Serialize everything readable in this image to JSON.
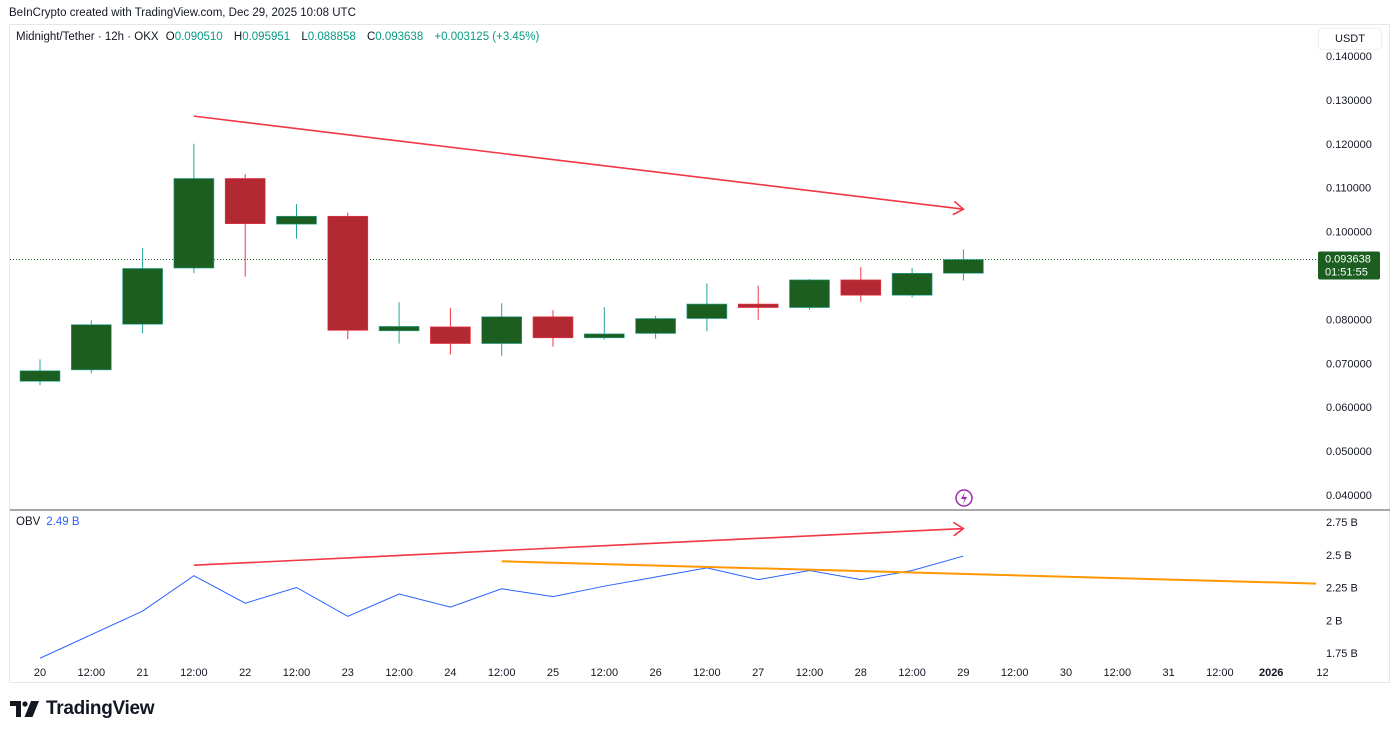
{
  "header": {
    "credit": "BeInCrypto created with TradingView.com, Dec 29, 2025 10:08 UTC",
    "symbol": "Midnight/Tether · 12h · OKX",
    "o_label": "O",
    "o_value": "0.090510",
    "h_label": "H",
    "h_value": "0.095951",
    "l_label": "L",
    "l_value": "0.088858",
    "c_label": "C",
    "c_value": "0.093638",
    "change": "+0.003125 (+3.45%)"
  },
  "price_axis": {
    "unit": "USDT",
    "last_price": "0.093638",
    "countdown": "01:51:55"
  },
  "obv_legend": {
    "label": "OBV",
    "value": "2.49 B"
  },
  "footer": {
    "logo_text": "TradingView"
  },
  "colors": {
    "up": "#1b5e20",
    "up_wick": "#26a69a",
    "down": "#b22833",
    "down_wick": "#f23645",
    "obv": "#2962ff",
    "trend_red": "#f23645",
    "trend_orange": "#ff9800",
    "event": "#9c27b0"
  },
  "chart_data": [
    {
      "type": "candlestick",
      "title": "Midnight/Tether · 12h · OKX",
      "ylabel": "USDT",
      "ylim": [
        0.04,
        0.14
      ],
      "yticks": [
        "0.140000",
        "0.130000",
        "0.120000",
        "0.110000",
        "0.100000",
        "0.080000",
        "0.070000",
        "0.060000",
        "0.050000",
        "0.040000"
      ],
      "x_tick_labels": [
        "20",
        "12:00",
        "21",
        "12:00",
        "22",
        "12:00",
        "23",
        "12:00",
        "24",
        "12:00",
        "25",
        "12:00",
        "26",
        "12:00",
        "27",
        "12:00",
        "28",
        "12:00",
        "29",
        "12:00",
        "30",
        "12:00",
        "31",
        "12:00",
        "2026",
        "12"
      ],
      "candles": [
        {
          "t": "Dec 20 00:00",
          "o": 0.0659,
          "h": 0.0709,
          "l": 0.065,
          "c": 0.0683
        },
        {
          "t": "Dec 20 12:00",
          "o": 0.0685,
          "h": 0.0798,
          "l": 0.0677,
          "c": 0.0788
        },
        {
          "t": "Dec 21 00:00",
          "o": 0.0789,
          "h": 0.0963,
          "l": 0.0768,
          "c": 0.0916
        },
        {
          "t": "Dec 21 12:00",
          "o": 0.0917,
          "h": 0.12,
          "l": 0.0905,
          "c": 0.1121
        },
        {
          "t": "Dec 22 00:00",
          "o": 0.1121,
          "h": 0.1131,
          "l": 0.0897,
          "c": 0.1018
        },
        {
          "t": "Dec 22 12:00",
          "o": 0.1017,
          "h": 0.1063,
          "l": 0.0984,
          "c": 0.1035
        },
        {
          "t": "Dec 23 00:00",
          "o": 0.1035,
          "h": 0.1043,
          "l": 0.0755,
          "c": 0.0775
        },
        {
          "t": "Dec 23 12:00",
          "o": 0.0774,
          "h": 0.0839,
          "l": 0.0745,
          "c": 0.0784
        },
        {
          "t": "Dec 24 00:00",
          "o": 0.0783,
          "h": 0.0826,
          "l": 0.072,
          "c": 0.0745
        },
        {
          "t": "Dec 24 12:00",
          "o": 0.0745,
          "h": 0.0837,
          "l": 0.0717,
          "c": 0.0806
        },
        {
          "t": "Dec 25 00:00",
          "o": 0.0806,
          "h": 0.0821,
          "l": 0.0738,
          "c": 0.0758
        },
        {
          "t": "Dec 25 12:00",
          "o": 0.0758,
          "h": 0.0828,
          "l": 0.0754,
          "c": 0.0767
        },
        {
          "t": "Dec 26 00:00",
          "o": 0.0768,
          "h": 0.0808,
          "l": 0.0756,
          "c": 0.0802
        },
        {
          "t": "Dec 26 12:00",
          "o": 0.0802,
          "h": 0.0882,
          "l": 0.0773,
          "c": 0.0835
        },
        {
          "t": "Dec 27 00:00",
          "o": 0.0835,
          "h": 0.0877,
          "l": 0.0799,
          "c": 0.0827
        },
        {
          "t": "Dec 27 12:00",
          "o": 0.0827,
          "h": 0.0892,
          "l": 0.0822,
          "c": 0.089
        },
        {
          "t": "Dec 28 00:00",
          "o": 0.089,
          "h": 0.0919,
          "l": 0.084,
          "c": 0.0855
        },
        {
          "t": "Dec 28 12:00",
          "o": 0.0855,
          "h": 0.0917,
          "l": 0.085,
          "c": 0.0905
        },
        {
          "t": "Dec 29 00:00",
          "o": 0.09051,
          "h": 0.095951,
          "l": 0.088858,
          "c": 0.093638
        }
      ],
      "trendlines": [
        {
          "color": "red",
          "from": {
            "t": "Dec 21 12:00",
            "v": 0.1263
          },
          "to": {
            "t": "Dec 29 00:00",
            "v": 0.1051
          },
          "arrow": true
        }
      ]
    },
    {
      "type": "line",
      "title": "OBV",
      "ylim_billions": [
        1.7,
        2.8
      ],
      "yticks": [
        "2.75 B",
        "2.5 B",
        "2.25 B",
        "2 B",
        "1.75 B"
      ],
      "series": [
        {
          "name": "OBV",
          "values_billions": [
            1.71,
            1.89,
            2.07,
            2.34,
            2.13,
            2.25,
            2.03,
            2.2,
            2.1,
            2.24,
            2.18,
            2.26,
            2.33,
            2.4,
            2.31,
            2.38,
            2.31,
            2.38,
            2.49
          ]
        }
      ],
      "trendlines": [
        {
          "color": "red",
          "from": {
            "t": "Dec 21 12:00",
            "v": 2.42
          },
          "to": {
            "t": "Dec 29 00:00",
            "v": 2.7
          },
          "arrow": true
        },
        {
          "color": "orange",
          "from": {
            "t": "Dec 24 12:00",
            "v": 2.45
          },
          "to": {
            "t": "Jan 1 06:00",
            "v": 2.28
          },
          "arrow": false
        }
      ]
    }
  ]
}
